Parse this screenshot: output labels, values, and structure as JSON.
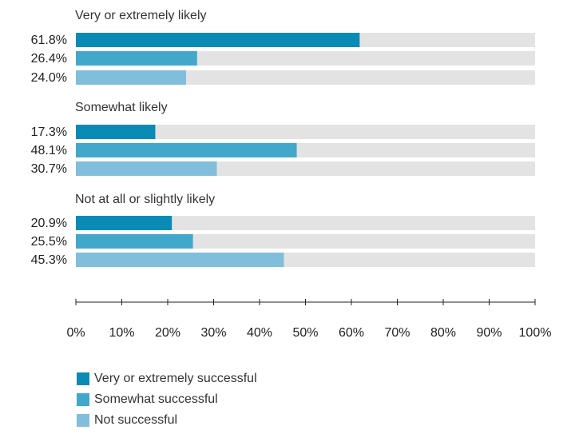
{
  "chart_data": {
    "type": "bar",
    "orientation": "horizontal",
    "groups": [
      {
        "label": "Very or extremely likely",
        "values": [
          61.8,
          26.4,
          24.0
        ],
        "value_labels": [
          "61.8%",
          "26.4%",
          "24.0%"
        ]
      },
      {
        "label": "Somewhat likely",
        "values": [
          17.3,
          48.1,
          30.7
        ],
        "value_labels": [
          "17.3%",
          "48.1%",
          "30.7%"
        ]
      },
      {
        "label": "Not at all or slightly likely",
        "values": [
          20.9,
          25.5,
          45.3
        ],
        "value_labels": [
          "20.9%",
          "25.5%",
          "45.3%"
        ]
      }
    ],
    "series": [
      {
        "name": "Very or extremely successful",
        "color": "#0a8bb5"
      },
      {
        "name": "Somewhat successful",
        "color": "#42a8cb"
      },
      {
        "name": "Not successful",
        "color": "#80bedb"
      }
    ],
    "xlim": [
      0,
      100
    ],
    "xticks": [
      0,
      10,
      20,
      30,
      40,
      50,
      60,
      70,
      80,
      90,
      100
    ],
    "xtick_labels": [
      "0%",
      "10%",
      "20%",
      "30%",
      "40%",
      "50%",
      "60%",
      "70%",
      "80%",
      "90%",
      "100%"
    ],
    "track_color": "#e3e3e3",
    "grid": false,
    "legend_position": "bottom-left"
  }
}
